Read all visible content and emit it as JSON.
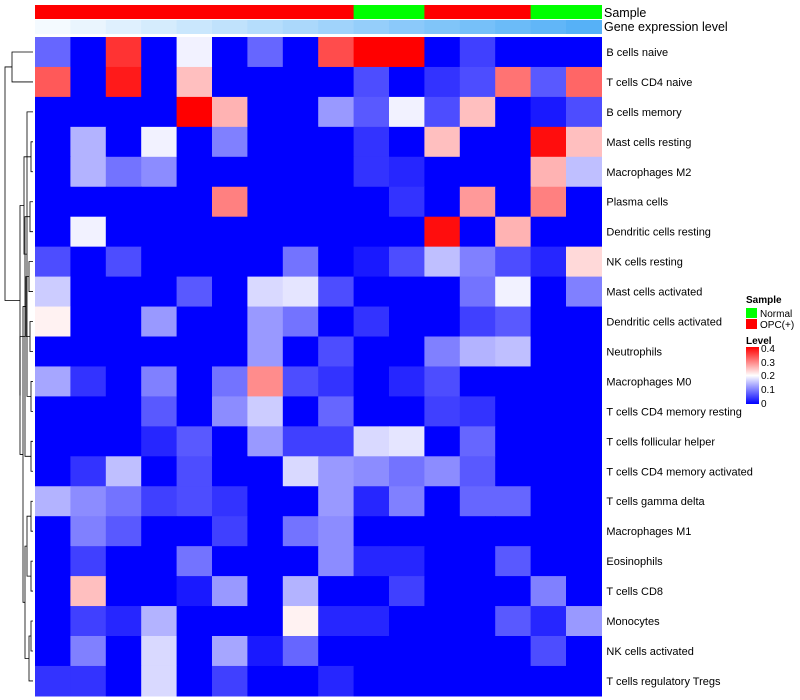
{
  "chart_data": {
    "type": "heatmap",
    "rows": [
      "B cells naive",
      "T cells CD4 naive",
      "B cells memory",
      "Mast cells resting",
      "Macrophages M2",
      "Plasma cells",
      "Dendritic cells resting",
      "NK cells resting",
      "Mast cells activated",
      "Dendritic cells activated",
      "Neutrophils",
      "Macrophages M0",
      "T cells CD4 memory resting",
      "T cells follicular helper",
      "T cells CD4 memory activated",
      "T cells gamma delta",
      "Macrophages M1",
      "Eosinophils",
      "T cells CD8",
      "Monocytes",
      "NK cells activated",
      "T cells regulatory  Tregs"
    ],
    "sample_groups": [
      "OPC(+)",
      "OPC(+)",
      "OPC(+)",
      "OPC(+)",
      "OPC(+)",
      "OPC(+)",
      "OPC(+)",
      "OPC(+)",
      "OPC(+)",
      "Normal",
      "Normal",
      "OPC(+)",
      "OPC(+)",
      "OPC(+)",
      "Normal",
      "Normal"
    ],
    "expression_level": [
      0.02,
      0.04,
      0.06,
      0.08,
      0.1,
      0.12,
      0.14,
      0.16,
      0.18,
      0.2,
      0.22,
      0.24,
      0.26,
      0.28,
      0.3,
      0.32
    ],
    "values": [
      [
        0.08,
        0.0,
        0.36,
        0.0,
        0.19,
        0.0,
        0.08,
        0.0,
        0.34,
        0.4,
        0.4,
        0.0,
        0.05,
        0.0,
        0.0,
        0.0
      ],
      [
        0.33,
        0.0,
        0.38,
        0.0,
        0.25,
        0.0,
        0.0,
        0.0,
        0.0,
        0.06,
        0.0,
        0.04,
        0.06,
        0.31,
        0.07,
        0.32
      ],
      [
        0.0,
        0.0,
        0.0,
        0.0,
        0.4,
        0.26,
        0.0,
        0.0,
        0.12,
        0.07,
        0.19,
        0.06,
        0.25,
        0.0,
        0.02,
        0.06
      ],
      [
        0.0,
        0.14,
        0.0,
        0.19,
        0.0,
        0.1,
        0.0,
        0.0,
        0.0,
        0.04,
        0.0,
        0.25,
        0.0,
        0.0,
        0.39,
        0.25
      ],
      [
        0.0,
        0.14,
        0.09,
        0.11,
        0.0,
        0.0,
        0.0,
        0.0,
        0.0,
        0.04,
        0.03,
        0.0,
        0.0,
        0.0,
        0.26,
        0.15
      ],
      [
        0.0,
        0.0,
        0.0,
        0.0,
        0.0,
        0.3,
        0.0,
        0.0,
        0.0,
        0.0,
        0.04,
        0.0,
        0.28,
        0.0,
        0.3,
        0.0
      ],
      [
        0.0,
        0.19,
        0.0,
        0.0,
        0.0,
        0.0,
        0.0,
        0.0,
        0.0,
        0.0,
        0.0,
        0.39,
        0.0,
        0.26,
        0.0,
        0.0
      ],
      [
        0.06,
        0.0,
        0.06,
        0.0,
        0.0,
        0.0,
        0.0,
        0.09,
        0.0,
        0.02,
        0.06,
        0.15,
        0.1,
        0.06,
        0.03,
        0.23
      ],
      [
        0.16,
        0.0,
        0.0,
        0.0,
        0.07,
        0.0,
        0.17,
        0.18,
        0.06,
        0.0,
        0.0,
        0.0,
        0.09,
        0.19,
        0.0,
        0.1
      ],
      [
        0.21,
        0.0,
        0.0,
        0.12,
        0.0,
        0.0,
        0.12,
        0.09,
        0.0,
        0.04,
        0.0,
        0.0,
        0.05,
        0.07,
        0.0,
        0.0
      ],
      [
        0.0,
        0.0,
        0.0,
        0.0,
        0.0,
        0.0,
        0.12,
        0.0,
        0.06,
        0.0,
        0.0,
        0.1,
        0.14,
        0.15,
        0.0,
        0.0
      ],
      [
        0.13,
        0.04,
        0.0,
        0.1,
        0.0,
        0.09,
        0.29,
        0.06,
        0.04,
        0.0,
        0.03,
        0.06,
        0.0,
        0.0,
        0.0,
        0.0
      ],
      [
        0.0,
        0.0,
        0.0,
        0.07,
        0.0,
        0.11,
        0.16,
        0.0,
        0.08,
        0.0,
        0.0,
        0.05,
        0.04,
        0.0,
        0.0,
        0.0
      ],
      [
        0.0,
        0.0,
        0.0,
        0.03,
        0.07,
        0.0,
        0.12,
        0.05,
        0.05,
        0.17,
        0.18,
        0.0,
        0.08,
        0.0,
        0.0,
        0.0
      ],
      [
        0.0,
        0.04,
        0.15,
        0.0,
        0.06,
        0.0,
        0.0,
        0.17,
        0.12,
        0.11,
        0.09,
        0.11,
        0.07,
        0.0,
        0.0,
        0.0
      ],
      [
        0.14,
        0.11,
        0.09,
        0.05,
        0.06,
        0.04,
        0.0,
        0.0,
        0.12,
        0.03,
        0.1,
        0.0,
        0.08,
        0.08,
        0.0,
        0.0
      ],
      [
        0.0,
        0.1,
        0.07,
        0.0,
        0.0,
        0.05,
        0.0,
        0.09,
        0.11,
        0.0,
        0.0,
        0.0,
        0.0,
        0.0,
        0.0,
        0.0
      ],
      [
        0.0,
        0.05,
        0.0,
        0.0,
        0.09,
        0.0,
        0.0,
        0.0,
        0.11,
        0.03,
        0.03,
        0.0,
        0.0,
        0.07,
        0.0,
        0.0
      ],
      [
        0.0,
        0.25,
        0.0,
        0.0,
        0.02,
        0.12,
        0.0,
        0.14,
        0.0,
        0.0,
        0.05,
        0.0,
        0.0,
        0.0,
        0.1,
        0.0
      ],
      [
        0.0,
        0.05,
        0.03,
        0.14,
        0.0,
        0.0,
        0.0,
        0.21,
        0.03,
        0.03,
        0.0,
        0.0,
        0.0,
        0.07,
        0.03,
        0.12
      ],
      [
        0.0,
        0.1,
        0.0,
        0.17,
        0.0,
        0.13,
        0.02,
        0.08,
        0.0,
        0.0,
        0.0,
        0.0,
        0.0,
        0.0,
        0.06,
        0.0
      ],
      [
        0.04,
        0.04,
        0.0,
        0.17,
        0.0,
        0.05,
        0.0,
        0.0,
        0.03,
        0.0,
        0.0,
        0.0,
        0.0,
        0.0,
        0.0,
        0.0
      ]
    ],
    "color_scale": {
      "min": 0,
      "max": 0.4,
      "low": "#0000ff",
      "mid": "#ffffff",
      "high": "#ff0000",
      "midpoint": 0.2
    },
    "annotation_colors": {
      "Normal": "#00ff00",
      "OPC(+)": "#ff0000",
      "expr_low": "#ffffff",
      "expr_high": "#56b1f7"
    },
    "annotation_labels": {
      "sample": "Sample",
      "expression": "Gene expression level"
    },
    "legends": {
      "sample": {
        "title": "Sample",
        "entries": [
          "Normal",
          "OPC(+)"
        ]
      },
      "level": {
        "title": "Level",
        "ticks": [
          "0.4",
          "0.3",
          "0.2",
          "0.1",
          "0"
        ]
      }
    }
  }
}
